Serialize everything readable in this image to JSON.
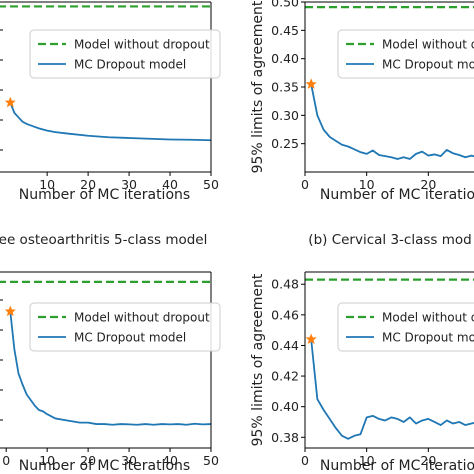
{
  "chart_data": [
    {
      "type": "line",
      "panel": "top-left",
      "title": "",
      "caption": "ee osteoarthritis 5-class model",
      "xlabel": "Number of MC iterations",
      "ylabel": "",
      "xlim": [
        -2,
        50
      ],
      "ylim": [
        0.07,
        0.185
      ],
      "xticks": [
        "10",
        "20",
        "30",
        "40",
        "50"
      ],
      "xtick_values": [
        10,
        20,
        30,
        40,
        50
      ],
      "yticks": [],
      "grid": false,
      "legend_position": "upper-right",
      "legend": [
        "Model without dropout",
        "MC Dropout model"
      ],
      "series": [
        {
          "name": "Model without dropout",
          "style": "dashed",
          "color": "#2ca02c",
          "x": [
            -2,
            50
          ],
          "values": [
            0.182,
            0.182
          ]
        },
        {
          "name": "MC Dropout model",
          "style": "solid",
          "color": "#1f77b4",
          "x": [
            1,
            2,
            3,
            4,
            5,
            6,
            7,
            8,
            10,
            12,
            15,
            20,
            25,
            30,
            35,
            40,
            45,
            50
          ],
          "values": [
            0.117,
            0.11,
            0.107,
            0.104,
            0.1025,
            0.1015,
            0.1005,
            0.0995,
            0.098,
            0.097,
            0.096,
            0.0945,
            0.0935,
            0.093,
            0.0925,
            0.092,
            0.0918,
            0.0915
          ]
        },
        {
          "name": "",
          "style": "star",
          "color": "#ff7f0e",
          "x": [
            1
          ],
          "values": [
            0.117
          ]
        }
      ]
    },
    {
      "type": "line",
      "panel": "top-right",
      "title": "",
      "caption": "(b) Cervical 3-class mod",
      "xlabel": "Number of MC iteratio",
      "ylabel": "95% limits of agreement",
      "xlim": [
        0,
        30
      ],
      "ylim": [
        0.2,
        0.5
      ],
      "xticks": [
        "0",
        "10",
        "20"
      ],
      "xtick_values": [
        0,
        10,
        20
      ],
      "yticks": [
        "0.25",
        "0.30",
        "0.35",
        "0.40",
        "0.45",
        "0.50"
      ],
      "ytick_values": [
        0.25,
        0.3,
        0.35,
        0.4,
        0.45,
        0.5
      ],
      "grid": false,
      "legend_position": "upper-right",
      "legend": [
        "Model without dr",
        "MC Dropout mode"
      ],
      "series": [
        {
          "name": "Model without dr",
          "style": "dashed",
          "color": "#2ca02c",
          "x": [
            0,
            30
          ],
          "values": [
            0.491,
            0.491
          ]
        },
        {
          "name": "MC Dropout mode",
          "style": "solid",
          "color": "#1f77b4",
          "x": [
            1,
            2,
            3,
            4,
            5,
            6,
            7,
            8,
            9,
            10,
            11,
            12,
            13,
            14,
            15,
            16,
            17,
            18,
            19,
            20,
            21,
            22,
            23,
            24,
            25,
            26,
            27,
            28,
            29,
            30
          ],
          "values": [
            0.355,
            0.3,
            0.275,
            0.262,
            0.255,
            0.248,
            0.245,
            0.24,
            0.235,
            0.232,
            0.238,
            0.23,
            0.228,
            0.226,
            0.223,
            0.226,
            0.223,
            0.232,
            0.236,
            0.229,
            0.231,
            0.228,
            0.239,
            0.233,
            0.23,
            0.226,
            0.229,
            0.226,
            0.224,
            0.223
          ]
        },
        {
          "name": "",
          "style": "star",
          "color": "#ff7f0e",
          "x": [
            1
          ],
          "values": [
            0.355
          ]
        }
      ]
    },
    {
      "type": "line",
      "panel": "bottom-left",
      "title": "",
      "caption": "",
      "xlabel": "Number of MC iterations",
      "ylabel": "",
      "xlim": [
        -2,
        50
      ],
      "ylim": [
        0.06,
        0.185
      ],
      "xticks": [
        "0",
        "10",
        "20",
        "30",
        "40",
        "50"
      ],
      "xtick_values": [
        0,
        10,
        20,
        30,
        40,
        50
      ],
      "yticks": [],
      "grid": false,
      "legend_position": "upper-right",
      "legend": [
        "Model without dropout",
        "MC Dropout model"
      ],
      "series": [
        {
          "name": "Model without dropout",
          "style": "dashed",
          "color": "#2ca02c",
          "x": [
            -2,
            50
          ],
          "values": [
            0.178,
            0.178
          ]
        },
        {
          "name": "MC Dropout model",
          "style": "solid",
          "color": "#1f77b4",
          "x": [
            1,
            2,
            3,
            4,
            5,
            6,
            7,
            8,
            9,
            10,
            12,
            14,
            16,
            18,
            20,
            22,
            24,
            26,
            28,
            30,
            32,
            34,
            36,
            38,
            40,
            42,
            44,
            46,
            48,
            50
          ],
          "values": [
            0.157,
            0.13,
            0.113,
            0.105,
            0.098,
            0.094,
            0.09,
            0.087,
            0.086,
            0.084,
            0.081,
            0.08,
            0.079,
            0.078,
            0.078,
            0.077,
            0.077,
            0.0765,
            0.077,
            0.0768,
            0.0765,
            0.077,
            0.0765,
            0.077,
            0.0768,
            0.077,
            0.0765,
            0.0772,
            0.0768,
            0.077
          ]
        },
        {
          "name": "",
          "style": "star",
          "color": "#ff7f0e",
          "x": [
            1
          ],
          "values": [
            0.157
          ]
        }
      ]
    },
    {
      "type": "line",
      "panel": "bottom-right",
      "title": "",
      "caption": "",
      "xlabel": "Number of MC iteratio",
      "ylabel": "95% limits of agreement",
      "xlim": [
        0,
        30
      ],
      "ylim": [
        0.373,
        0.488
      ],
      "xticks": [
        "0",
        "10",
        "20"
      ],
      "xtick_values": [
        0,
        10,
        20
      ],
      "yticks": [
        "0.38",
        "0.40",
        "0.42",
        "0.44",
        "0.46",
        "0.48"
      ],
      "ytick_values": [
        0.38,
        0.4,
        0.42,
        0.44,
        0.46,
        0.48
      ],
      "grid": false,
      "legend_position": "upper-right",
      "legend": [
        "Model without dr",
        "MC Dropout mode"
      ],
      "series": [
        {
          "name": "Model without dr",
          "style": "dashed",
          "color": "#2ca02c",
          "x": [
            0,
            30
          ],
          "values": [
            0.483,
            0.483
          ]
        },
        {
          "name": "MC Dropout mode",
          "style": "solid",
          "color": "#1f77b4",
          "x": [
            1,
            2,
            3,
            4,
            5,
            6,
            7,
            8,
            9,
            10,
            11,
            12,
            13,
            14,
            15,
            16,
            17,
            18,
            19,
            20,
            21,
            22,
            23,
            24,
            25,
            26,
            27,
            28,
            29,
            30
          ],
          "values": [
            0.444,
            0.405,
            0.398,
            0.392,
            0.386,
            0.381,
            0.379,
            0.381,
            0.382,
            0.393,
            0.394,
            0.392,
            0.391,
            0.393,
            0.392,
            0.39,
            0.393,
            0.389,
            0.391,
            0.392,
            0.39,
            0.388,
            0.391,
            0.389,
            0.39,
            0.388,
            0.389,
            0.39,
            0.389,
            0.388
          ]
        },
        {
          "name": "",
          "style": "star",
          "color": "#ff7f0e",
          "x": [
            1
          ],
          "values": [
            0.444
          ]
        }
      ]
    }
  ]
}
